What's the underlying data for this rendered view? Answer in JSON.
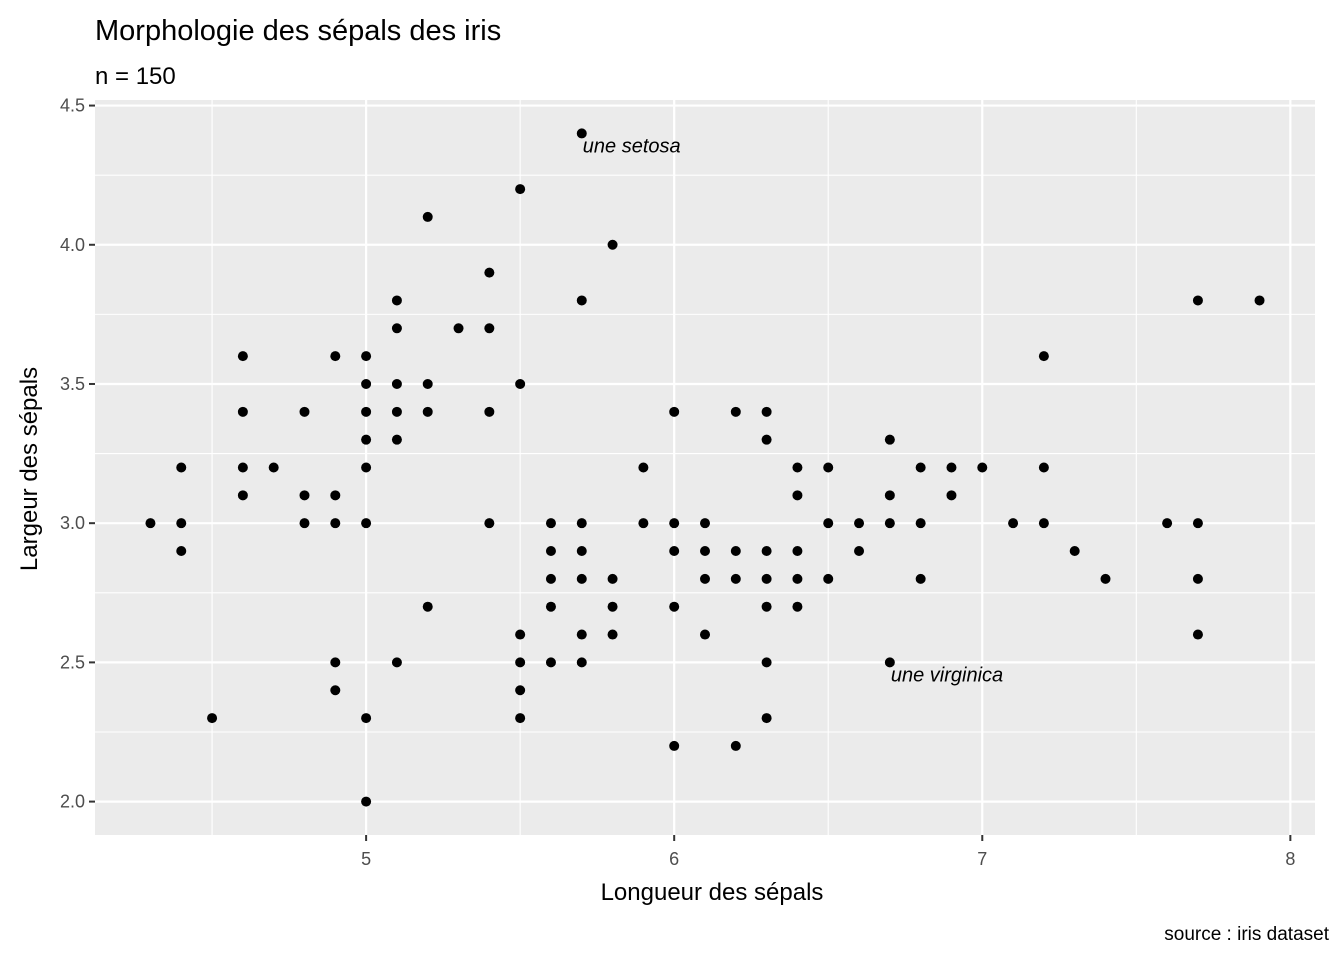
{
  "chart_data": {
    "type": "scatter",
    "title": "Morphologie des sépals des iris",
    "subtitle": "n = 150",
    "xlabel": "Longueur des sépals",
    "ylabel": "Largeur des sépals",
    "caption": "source : iris dataset",
    "xlim": [
      4.12,
      8.08
    ],
    "ylim": [
      1.88,
      4.52
    ],
    "x_ticks": [
      5,
      6,
      7,
      8
    ],
    "x_tick_labels": [
      "5",
      "6",
      "7",
      "8"
    ],
    "y_ticks": [
      2.0,
      2.5,
      3.0,
      3.5,
      4.0,
      4.5
    ],
    "y_tick_labels": [
      "2.0",
      "2.5",
      "3.0",
      "3.5",
      "4.0",
      "4.5"
    ],
    "grid": true,
    "points": [
      [
        4.3,
        3.0
      ],
      [
        4.4,
        2.9
      ],
      [
        4.4,
        3.0
      ],
      [
        4.4,
        3.2
      ],
      [
        4.5,
        2.3
      ],
      [
        4.6,
        3.1
      ],
      [
        4.6,
        3.2
      ],
      [
        4.6,
        3.4
      ],
      [
        4.6,
        3.6
      ],
      [
        4.7,
        3.2
      ],
      [
        4.8,
        3.0
      ],
      [
        4.8,
        3.1
      ],
      [
        4.8,
        3.4
      ],
      [
        4.9,
        2.4
      ],
      [
        4.9,
        2.5
      ],
      [
        4.9,
        3.0
      ],
      [
        4.9,
        3.1
      ],
      [
        4.9,
        3.6
      ],
      [
        5.0,
        2.0
      ],
      [
        5.0,
        2.3
      ],
      [
        5.0,
        3.0
      ],
      [
        5.0,
        3.2
      ],
      [
        5.0,
        3.3
      ],
      [
        5.0,
        3.4
      ],
      [
        5.0,
        3.5
      ],
      [
        5.0,
        3.6
      ],
      [
        5.1,
        2.5
      ],
      [
        5.1,
        3.3
      ],
      [
        5.1,
        3.4
      ],
      [
        5.1,
        3.5
      ],
      [
        5.1,
        3.7
      ],
      [
        5.1,
        3.8
      ],
      [
        5.2,
        2.7
      ],
      [
        5.2,
        3.4
      ],
      [
        5.2,
        3.5
      ],
      [
        5.2,
        4.1
      ],
      [
        5.3,
        3.7
      ],
      [
        5.4,
        3.0
      ],
      [
        5.4,
        3.4
      ],
      [
        5.4,
        3.7
      ],
      [
        5.4,
        3.9
      ],
      [
        5.5,
        2.3
      ],
      [
        5.5,
        2.4
      ],
      [
        5.5,
        2.5
      ],
      [
        5.5,
        2.6
      ],
      [
        5.5,
        3.5
      ],
      [
        5.5,
        4.2
      ],
      [
        5.6,
        2.5
      ],
      [
        5.6,
        2.7
      ],
      [
        5.6,
        2.8
      ],
      [
        5.6,
        2.9
      ],
      [
        5.6,
        3.0
      ],
      [
        5.7,
        2.5
      ],
      [
        5.7,
        2.6
      ],
      [
        5.7,
        2.8
      ],
      [
        5.7,
        2.9
      ],
      [
        5.7,
        3.0
      ],
      [
        5.7,
        3.8
      ],
      [
        5.7,
        4.4
      ],
      [
        5.8,
        2.6
      ],
      [
        5.8,
        2.7
      ],
      [
        5.8,
        2.8
      ],
      [
        5.8,
        4.0
      ],
      [
        5.9,
        3.0
      ],
      [
        5.9,
        3.2
      ],
      [
        6.0,
        2.2
      ],
      [
        6.0,
        2.7
      ],
      [
        6.0,
        2.9
      ],
      [
        6.0,
        3.0
      ],
      [
        6.0,
        3.4
      ],
      [
        6.1,
        2.6
      ],
      [
        6.1,
        2.8
      ],
      [
        6.1,
        2.9
      ],
      [
        6.1,
        3.0
      ],
      [
        6.2,
        2.2
      ],
      [
        6.2,
        2.8
      ],
      [
        6.2,
        2.9
      ],
      [
        6.2,
        3.4
      ],
      [
        6.3,
        2.3
      ],
      [
        6.3,
        2.5
      ],
      [
        6.3,
        2.7
      ],
      [
        6.3,
        2.8
      ],
      [
        6.3,
        2.9
      ],
      [
        6.3,
        3.3
      ],
      [
        6.3,
        3.4
      ],
      [
        6.4,
        2.7
      ],
      [
        6.4,
        2.8
      ],
      [
        6.4,
        2.9
      ],
      [
        6.4,
        3.1
      ],
      [
        6.4,
        3.2
      ],
      [
        6.5,
        2.8
      ],
      [
        6.5,
        3.0
      ],
      [
        6.5,
        3.2
      ],
      [
        6.6,
        2.9
      ],
      [
        6.6,
        3.0
      ],
      [
        6.7,
        2.5
      ],
      [
        6.7,
        3.0
      ],
      [
        6.7,
        3.1
      ],
      [
        6.7,
        3.3
      ],
      [
        6.8,
        2.8
      ],
      [
        6.8,
        3.0
      ],
      [
        6.8,
        3.2
      ],
      [
        6.9,
        3.1
      ],
      [
        6.9,
        3.2
      ],
      [
        7.0,
        3.2
      ],
      [
        7.1,
        3.0
      ],
      [
        7.2,
        3.0
      ],
      [
        7.2,
        3.2
      ],
      [
        7.2,
        3.6
      ],
      [
        7.3,
        2.9
      ],
      [
        7.4,
        2.8
      ],
      [
        7.6,
        3.0
      ],
      [
        7.7,
        2.6
      ],
      [
        7.7,
        2.8
      ],
      [
        7.7,
        3.0
      ],
      [
        7.7,
        3.8
      ],
      [
        7.9,
        3.8
      ]
    ],
    "annotations": [
      {
        "text": "une setosa",
        "x": 5.7,
        "y": 4.4
      },
      {
        "text": "une virginica",
        "x": 6.7,
        "y": 2.5
      }
    ],
    "colors": {
      "panel": "#ebebeb",
      "grid": "#ffffff",
      "point": "#000000"
    }
  }
}
